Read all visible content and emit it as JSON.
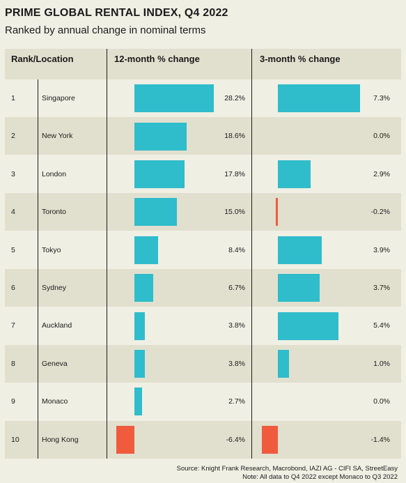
{
  "title": "PRIME GLOBAL RENTAL INDEX, Q4 2022",
  "subtitle": "Ranked by annual change in nominal terms",
  "headers": {
    "rank_location": "Rank/Location",
    "col12": "12-month % change",
    "col3": "3-month % change"
  },
  "source_line1": "Source: Knight Frank Research, Macrobond, IAZI AG - CIFI SA, StreetEasy",
  "source_line2": "Note: All data to Q4 2022 except Monaco to Q3 2022",
  "colors": {
    "positive": "#2fbccb",
    "negative": "#ef5b3c",
    "alt_row": "#e1e0cf",
    "background": "#f0efe4"
  },
  "chart_data": {
    "type": "bar",
    "categories": [
      "Singapore",
      "New York",
      "London",
      "Toronto",
      "Tokyo",
      "Sydney",
      "Auckland",
      "Geneva",
      "Monaco",
      "Hong Kong"
    ],
    "ranks": [
      "1",
      "2",
      "3",
      "4",
      "5",
      "6",
      "7",
      "8",
      "9",
      "10"
    ],
    "series": [
      {
        "name": "12-month % change",
        "values": [
          28.2,
          18.6,
          17.8,
          15.0,
          8.4,
          6.7,
          3.8,
          3.8,
          2.7,
          -6.4
        ],
        "labels": [
          "28.2%",
          "18.6%",
          "17.8%",
          "15.0%",
          "8.4%",
          "6.7%",
          "3.8%",
          "3.8%",
          "2.7%",
          "-6.4%"
        ]
      },
      {
        "name": "3-month % change",
        "values": [
          7.3,
          0.0,
          2.9,
          -0.2,
          3.9,
          3.7,
          5.4,
          1.0,
          0.0,
          -1.4
        ],
        "labels": [
          "7.3%",
          "0.0%",
          "2.9%",
          "-0.2%",
          "3.9%",
          "3.7%",
          "5.4%",
          "1.0%",
          "0.0%",
          "-1.4%"
        ]
      }
    ]
  }
}
